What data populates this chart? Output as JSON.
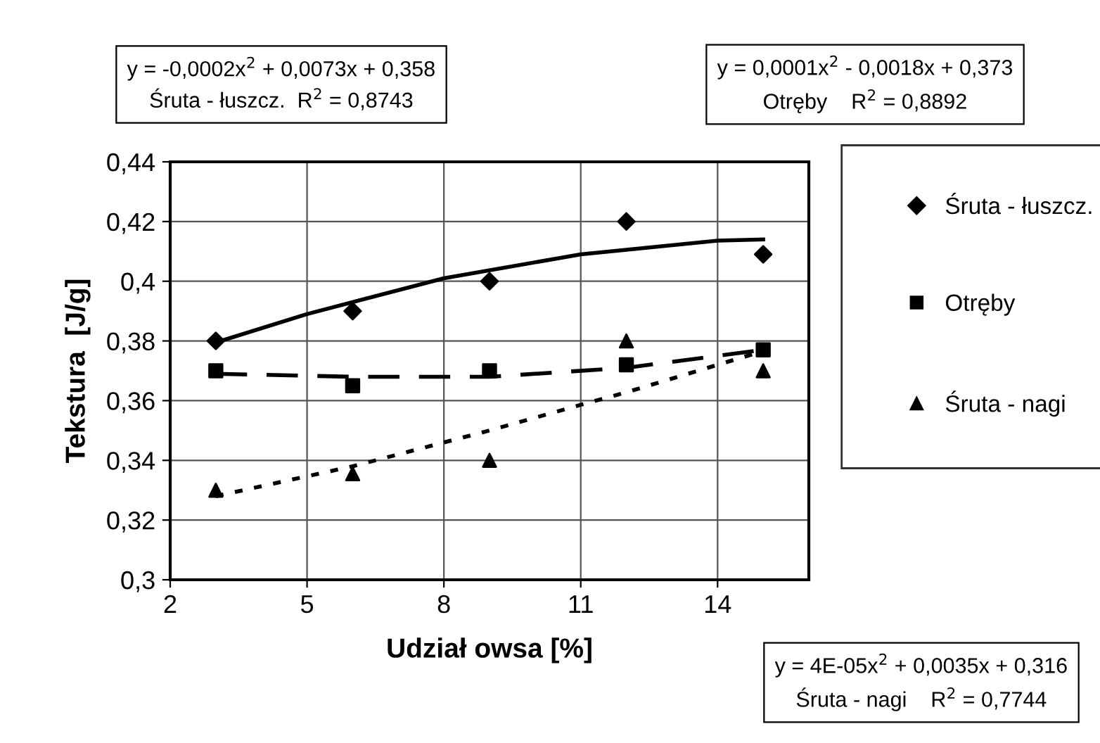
{
  "chart_data": {
    "type": "scatter",
    "xlabel": "Udział owsa [%]",
    "ylabel": "Tekstura  [J/g]",
    "xlim": [
      2,
      16
    ],
    "xticks": [
      2,
      5,
      8,
      11,
      14
    ],
    "ylim": [
      0.3,
      0.44
    ],
    "yticks": [
      {
        "value": 0.3,
        "label": "0,3"
      },
      {
        "value": 0.32,
        "label": "0,32"
      },
      {
        "value": 0.34,
        "label": "0,34"
      },
      {
        "value": 0.36,
        "label": "0,36"
      },
      {
        "value": 0.38,
        "label": "0,38"
      },
      {
        "value": 0.4,
        "label": "0,4"
      },
      {
        "value": 0.42,
        "label": "0,42"
      },
      {
        "value": 0.44,
        "label": "0,44"
      }
    ],
    "grid": true,
    "legend": "right",
    "series": [
      {
        "name": "Śruta - łuszcz.",
        "color": "#000000",
        "marker": "diamond",
        "x": [
          3,
          6,
          9,
          12,
          15
        ],
        "values": [
          0.38,
          0.39,
          0.4,
          0.42,
          0.409
        ]
      },
      {
        "name": "Otręby",
        "color": "#000000",
        "marker": "square",
        "x": [
          3,
          6,
          9,
          12,
          15
        ],
        "values": [
          0.37,
          0.365,
          0.37,
          0.372,
          0.377
        ]
      },
      {
        "name": "Śruta - nagi",
        "color": "#000000",
        "marker": "triangle",
        "x": [
          3,
          6,
          9,
          12,
          15
        ],
        "values": [
          0.33,
          0.3355,
          0.34,
          0.38,
          0.37
        ]
      },
      {
        "type": "line",
        "color": "#000000",
        "line_style": "solid",
        "x": [
          3,
          5,
          8,
          11,
          14,
          15
        ],
        "values": [
          0.3795,
          0.389,
          0.401,
          0.409,
          0.4136,
          0.414
        ]
      },
      {
        "type": "line",
        "color": "#000000",
        "line_style": "dashed",
        "x": [
          3,
          6,
          9,
          12,
          15
        ],
        "values": [
          0.369,
          0.368,
          0.368,
          0.371,
          0.377
        ]
      },
      {
        "type": "line",
        "color": "#000000",
        "line_style": "dotted",
        "x": [
          3,
          6,
          9,
          11,
          12,
          15
        ],
        "values": [
          0.328,
          0.338,
          0.35,
          0.3586,
          0.3628,
          0.3766
        ]
      }
    ],
    "annotations": [
      "y = -0,0002x$^{2}$ + 0,0073x + 0,358\nŚruta - łuszcz.  R$^{2}$ = 0,8743",
      "y = 0,0001x$^{2}$ - 0,0018x + 0,373\nOtręby    R$^{2}$ = 0,8892",
      "y = 4E-05x$^{2}$ + 0,0035x + 0,316\nŚruta - nagi    R$^{2}$ = 0,7744"
    ]
  }
}
